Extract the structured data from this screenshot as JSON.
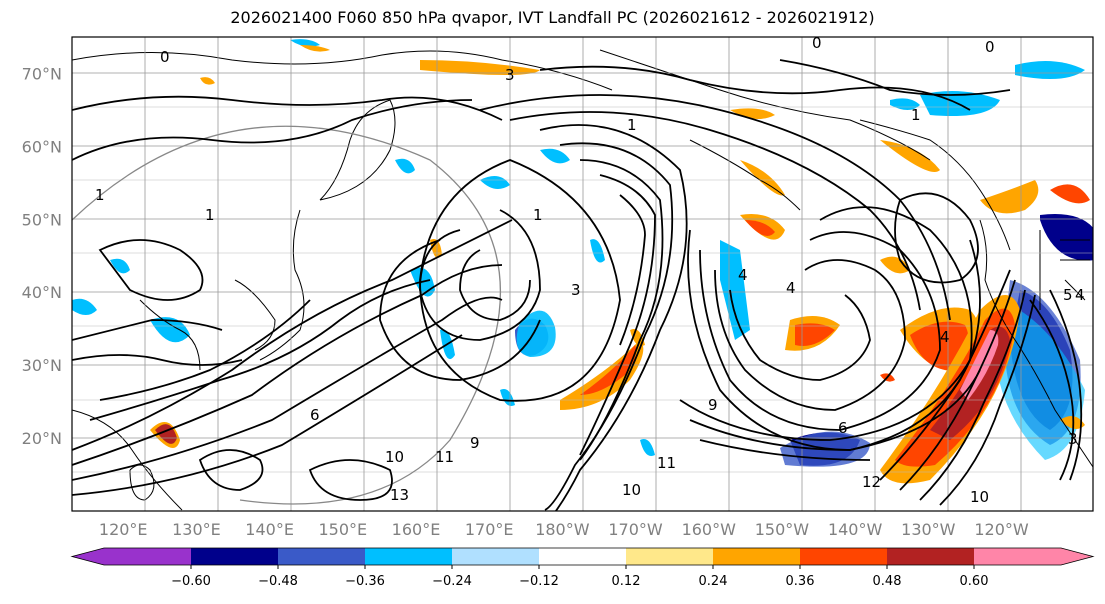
{
  "title": "2026021400 F060 850 hPa qvapor, IVT Landfall PC (2026021612 - 2026021912)",
  "map": {
    "lat_labels": [
      "70°N",
      "60°N",
      "50°N",
      "40°N",
      "30°N",
      "20°N"
    ],
    "lat_values": [
      70,
      60,
      50,
      40,
      30,
      20
    ],
    "lon_labels": [
      "120°E",
      "130°E",
      "140°E",
      "150°E",
      "160°E",
      "170°E",
      "180°W",
      "170°W",
      "160°W",
      "150°W",
      "140°W",
      "130°W",
      "120°W"
    ],
    "lon_values": [
      120,
      130,
      140,
      150,
      160,
      170,
      180,
      190,
      200,
      210,
      220,
      230,
      240
    ],
    "extent": {
      "lon_min": 113,
      "lon_max": 252.5,
      "lat_min": 10,
      "lat_max": 75
    },
    "grid": true,
    "contour_labels": [
      "0",
      "0",
      "0",
      "1",
      "1",
      "1",
      "1",
      "1",
      "3",
      "3",
      "4",
      "4",
      "4",
      "5",
      "6",
      "6",
      "9",
      "9",
      "10",
      "10",
      "11",
      "11",
      "12",
      "13",
      "10",
      "3",
      "4"
    ]
  },
  "colorbar": {
    "ticks": [
      "−0.60",
      "−0.48",
      "−0.36",
      "−0.24",
      "−0.12",
      "0.12",
      "0.24",
      "0.36",
      "0.48",
      "0.60"
    ],
    "colors": [
      "#9932CC",
      "#00008B",
      "#3A5AC8",
      "#00BFFF",
      "#B0E0FF",
      "#FFFFFF",
      "#FFE88A",
      "#FFA500",
      "#FF4500",
      "#B22222",
      "#FF85A8"
    ],
    "extend": "both"
  }
}
